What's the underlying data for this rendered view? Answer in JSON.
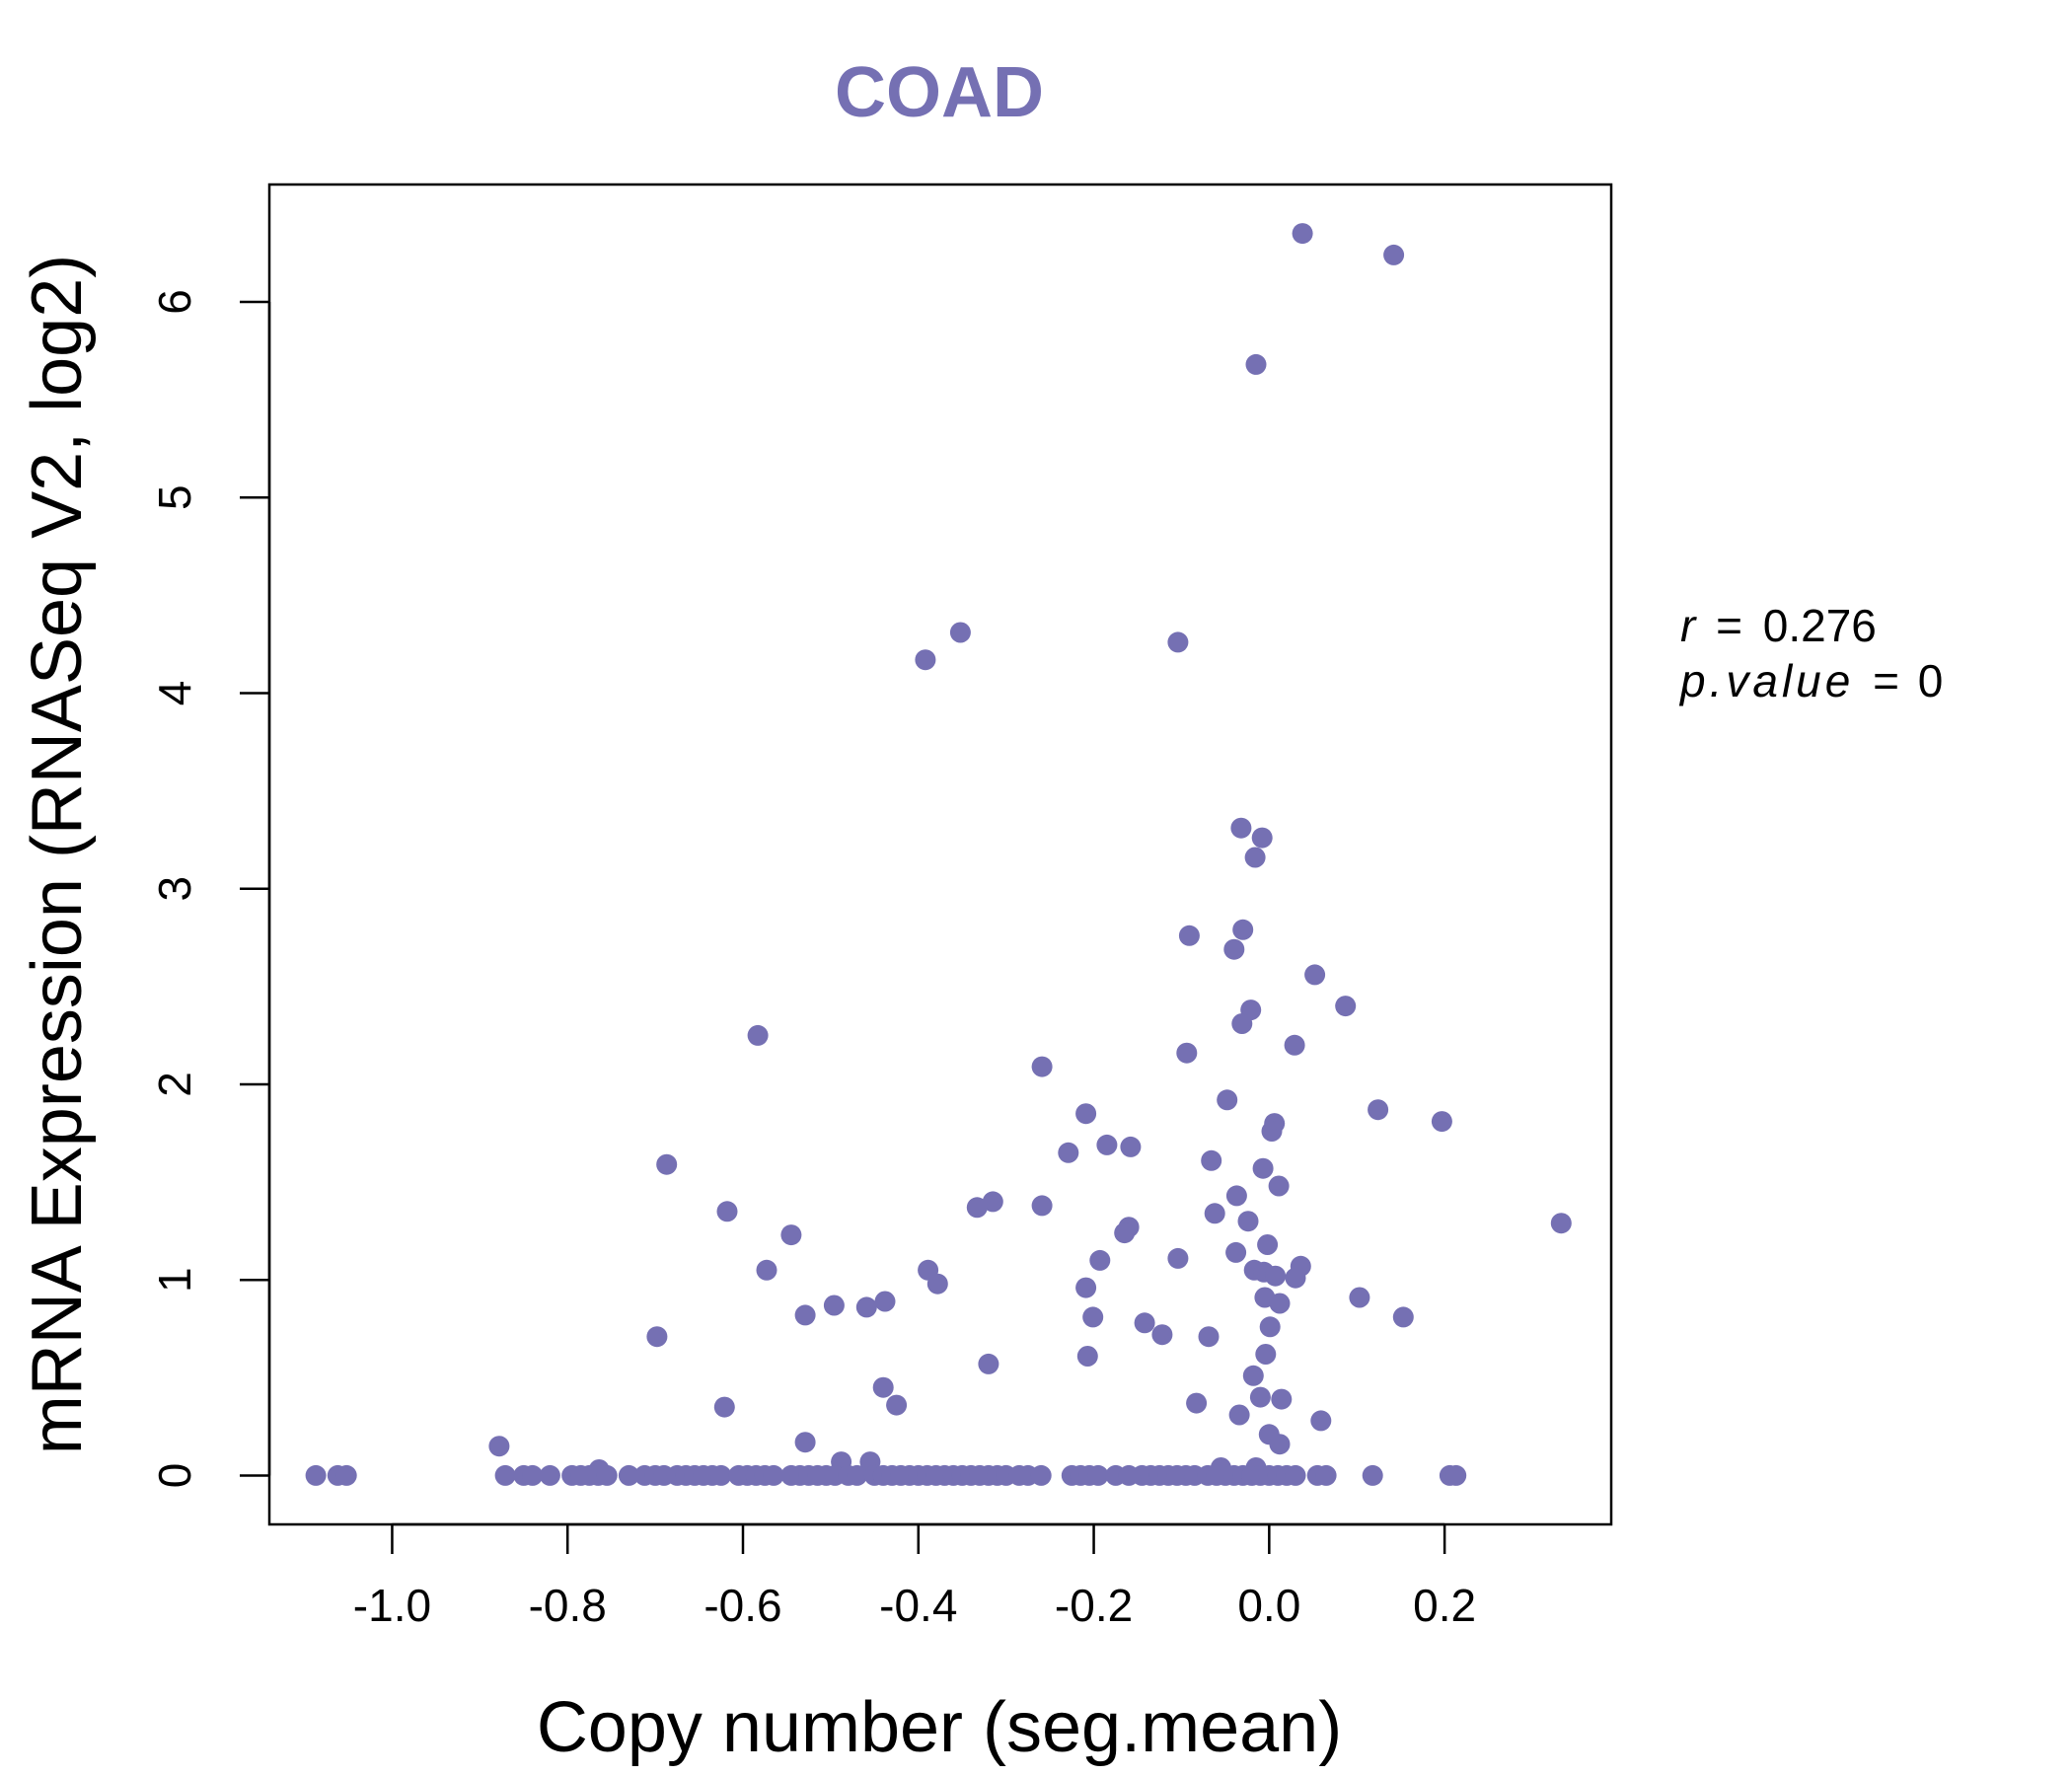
{
  "chart_data": {
    "type": "scatter",
    "title": "COAD",
    "xlabel": "Copy number (seg.mean)",
    "ylabel": "mRNA Expression (RNASeq V2, log2)",
    "xlim": [
      -1.14,
      0.39
    ],
    "ylim": [
      -0.25,
      6.6
    ],
    "x_ticks": [
      -1.0,
      -0.8,
      -0.6,
      -0.4,
      -0.2,
      0.0,
      0.2
    ],
    "x_tick_labels": [
      "-1.0",
      "-0.8",
      "-0.6",
      "-0.4",
      "-0.2",
      "0.0",
      "0.2"
    ],
    "y_ticks": [
      0,
      1,
      2,
      3,
      4,
      5,
      6
    ],
    "y_tick_labels": [
      "0",
      "1",
      "2",
      "3",
      "4",
      "5",
      "6"
    ],
    "point_color": "#7570b3",
    "grid": false,
    "legend": "none",
    "stats": {
      "r_label": "r",
      "r_value": "0.276",
      "p_label": "p.value",
      "p_value": "0"
    },
    "points": [
      [
        0.038,
        6.35
      ],
      [
        0.142,
        6.24
      ],
      [
        -0.015,
        5.68
      ],
      [
        -0.352,
        4.31
      ],
      [
        -0.392,
        4.17
      ],
      [
        -0.104,
        4.26
      ],
      [
        -0.032,
        3.31
      ],
      [
        -0.008,
        3.26
      ],
      [
        -0.016,
        3.16
      ],
      [
        -0.091,
        2.76
      ],
      [
        -0.03,
        2.79
      ],
      [
        -0.04,
        2.69
      ],
      [
        0.052,
        2.56
      ],
      [
        0.087,
        2.4
      ],
      [
        -0.021,
        2.38
      ],
      [
        -0.031,
        2.31
      ],
      [
        -0.583,
        2.25
      ],
      [
        0.029,
        2.2
      ],
      [
        -0.094,
        2.16
      ],
      [
        -0.259,
        2.09
      ],
      [
        -0.048,
        1.92
      ],
      [
        0.124,
        1.87
      ],
      [
        -0.209,
        1.85
      ],
      [
        0.197,
        1.81
      ],
      [
        0.006,
        1.8
      ],
      [
        0.003,
        1.76
      ],
      [
        -0.185,
        1.69
      ],
      [
        -0.158,
        1.68
      ],
      [
        -0.229,
        1.65
      ],
      [
        -0.066,
        1.61
      ],
      [
        -0.687,
        1.59
      ],
      [
        -0.007,
        1.57
      ],
      [
        0.011,
        1.48
      ],
      [
        -0.037,
        1.43
      ],
      [
        -0.315,
        1.4
      ],
      [
        -0.333,
        1.37
      ],
      [
        -0.259,
        1.38
      ],
      [
        -0.618,
        1.35
      ],
      [
        -0.062,
        1.34
      ],
      [
        -0.024,
        1.3
      ],
      [
        0.333,
        1.29
      ],
      [
        -0.16,
        1.27
      ],
      [
        -0.165,
        1.24
      ],
      [
        -0.545,
        1.23
      ],
      [
        -0.002,
        1.18
      ],
      [
        -0.038,
        1.14
      ],
      [
        -0.104,
        1.11
      ],
      [
        -0.193,
        1.1
      ],
      [
        -0.573,
        1.05
      ],
      [
        -0.389,
        1.05
      ],
      [
        -0.017,
        1.05
      ],
      [
        -0.006,
        1.04
      ],
      [
        0.036,
        1.07
      ],
      [
        0.007,
        1.02
      ],
      [
        0.03,
        1.01
      ],
      [
        -0.378,
        0.98
      ],
      [
        -0.209,
        0.96
      ],
      [
        -0.005,
        0.91
      ],
      [
        0.103,
        0.91
      ],
      [
        0.012,
        0.88
      ],
      [
        -0.438,
        0.89
      ],
      [
        -0.459,
        0.86
      ],
      [
        -0.496,
        0.87
      ],
      [
        -0.529,
        0.82
      ],
      [
        0.153,
        0.81
      ],
      [
        -0.201,
        0.81
      ],
      [
        -0.142,
        0.78
      ],
      [
        0.001,
        0.76
      ],
      [
        -0.698,
        0.71
      ],
      [
        -0.122,
        0.72
      ],
      [
        -0.069,
        0.71
      ],
      [
        -0.004,
        0.62
      ],
      [
        -0.207,
        0.61
      ],
      [
        -0.32,
        0.57
      ],
      [
        -0.018,
        0.51
      ],
      [
        -0.44,
        0.45
      ],
      [
        -0.01,
        0.4
      ],
      [
        0.014,
        0.39
      ],
      [
        -0.425,
        0.36
      ],
      [
        -0.083,
        0.37
      ],
      [
        -0.621,
        0.35
      ],
      [
        -0.034,
        0.31
      ],
      [
        0.059,
        0.28
      ],
      [
        0.0,
        0.21
      ],
      [
        0.012,
        0.16
      ],
      [
        -0.529,
        0.17
      ],
      [
        -0.878,
        0.15
      ],
      [
        -0.488,
        0.07
      ],
      [
        -0.455,
        0.07
      ],
      [
        -0.764,
        0.03
      ],
      [
        -0.055,
        0.04
      ],
      [
        -0.015,
        0.04
      ],
      [
        -1.087,
        0.0
      ],
      [
        -1.062,
        0.0
      ],
      [
        -1.052,
        0.0
      ],
      [
        -0.871,
        0.0
      ],
      [
        -0.85,
        0.0
      ],
      [
        -0.84,
        0.0
      ],
      [
        -0.82,
        0.0
      ],
      [
        -0.795,
        0.0
      ],
      [
        -0.785,
        0.0
      ],
      [
        -0.775,
        0.0
      ],
      [
        -0.765,
        0.0
      ],
      [
        -0.755,
        0.0
      ],
      [
        -0.73,
        0.0
      ],
      [
        -0.712,
        0.0
      ],
      [
        -0.7,
        0.0
      ],
      [
        -0.69,
        0.0
      ],
      [
        -0.675,
        0.0
      ],
      [
        -0.665,
        0.0
      ],
      [
        -0.655,
        0.0
      ],
      [
        -0.645,
        0.0
      ],
      [
        -0.635,
        0.0
      ],
      [
        -0.625,
        0.0
      ],
      [
        -0.605,
        0.0
      ],
      [
        -0.595,
        0.0
      ],
      [
        -0.585,
        0.0
      ],
      [
        -0.575,
        0.0
      ],
      [
        -0.565,
        0.0
      ],
      [
        -0.545,
        0.0
      ],
      [
        -0.535,
        0.0
      ],
      [
        -0.525,
        0.0
      ],
      [
        -0.515,
        0.0
      ],
      [
        -0.505,
        0.0
      ],
      [
        -0.495,
        0.0
      ],
      [
        -0.48,
        0.0
      ],
      [
        -0.47,
        0.0
      ],
      [
        -0.45,
        0.0
      ],
      [
        -0.44,
        0.0
      ],
      [
        -0.43,
        0.0
      ],
      [
        -0.42,
        0.0
      ],
      [
        -0.41,
        0.0
      ],
      [
        -0.4,
        0.0
      ],
      [
        -0.39,
        0.0
      ],
      [
        -0.38,
        0.0
      ],
      [
        -0.37,
        0.0
      ],
      [
        -0.36,
        0.0
      ],
      [
        -0.35,
        0.0
      ],
      [
        -0.34,
        0.0
      ],
      [
        -0.33,
        0.0
      ],
      [
        -0.32,
        0.0
      ],
      [
        -0.31,
        0.0
      ],
      [
        -0.3,
        0.0
      ],
      [
        -0.285,
        0.0
      ],
      [
        -0.275,
        0.0
      ],
      [
        -0.26,
        0.0
      ],
      [
        -0.225,
        0.0
      ],
      [
        -0.215,
        0.0
      ],
      [
        -0.205,
        0.0
      ],
      [
        -0.195,
        0.0
      ],
      [
        -0.175,
        0.0
      ],
      [
        -0.16,
        0.0
      ],
      [
        -0.145,
        0.0
      ],
      [
        -0.135,
        0.0
      ],
      [
        -0.125,
        0.0
      ],
      [
        -0.115,
        0.0
      ],
      [
        -0.105,
        0.0
      ],
      [
        -0.095,
        0.0
      ],
      [
        -0.085,
        0.0
      ],
      [
        -0.07,
        0.0
      ],
      [
        -0.06,
        0.0
      ],
      [
        -0.05,
        0.0
      ],
      [
        -0.04,
        0.0
      ],
      [
        -0.03,
        0.0
      ],
      [
        -0.02,
        0.0
      ],
      [
        -0.01,
        0.0
      ],
      [
        0.0,
        0.0
      ],
      [
        0.01,
        0.0
      ],
      [
        0.02,
        0.0
      ],
      [
        0.03,
        0.0
      ],
      [
        0.055,
        0.0
      ],
      [
        0.065,
        0.0
      ],
      [
        0.118,
        0.0
      ],
      [
        0.206,
        0.0
      ],
      [
        0.213,
        0.0
      ]
    ]
  }
}
